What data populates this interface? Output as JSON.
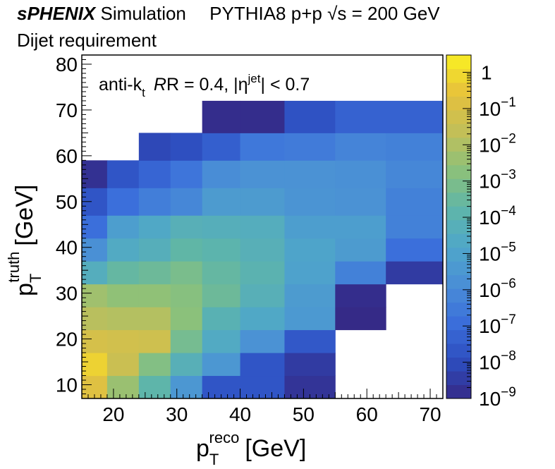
{
  "header": {
    "experiment": "sPHENIX",
    "simulation": "Simulation",
    "generator_text": "PYTHIA8 p+p",
    "energy_text": "s = 200 GeV",
    "requirement": "Dijet requirement"
  },
  "chart_data": {
    "type": "heatmap",
    "title": "",
    "annotation": {
      "algorithm": "anti-k",
      "algorithm_sub": "t",
      "radius_text": "R = 0.4, |η",
      "radius_sup": "jet",
      "cut_text": "| < 0.7"
    },
    "xlabel": {
      "base": "p",
      "sub": "T",
      "sup": "reco",
      "unit": "[GeV]"
    },
    "ylabel": {
      "base": "p",
      "sub": "T",
      "sup": "truth",
      "unit": "[GeV]"
    },
    "xlim": [
      15,
      72
    ],
    "ylim": [
      7,
      82
    ],
    "x_ticks": [
      "20",
      "30",
      "40",
      "50",
      "60",
      "70"
    ],
    "y_ticks": [
      "10",
      "20",
      "30",
      "40",
      "50",
      "60",
      "70",
      "80"
    ],
    "x_bin_edges": [
      15,
      19,
      24,
      29,
      34,
      40,
      47,
      55,
      63,
      72
    ],
    "y_bin_edges": [
      7,
      12,
      17,
      22,
      27,
      32,
      37,
      42,
      47,
      53,
      59,
      65,
      72
    ],
    "z_scale": "log",
    "zlim": [
      1e-09,
      3
    ],
    "z_ticks": [
      "1",
      "10^{-1}",
      "10^{-2}",
      "10^{-3}",
      "10^{-4}",
      "10^{-5}",
      "10^{-6}",
      "10^{-7}",
      "10^{-8}",
      "10^{-9}"
    ],
    "z_log10": [
      [
        -0.8,
        -2.4,
        -3.8,
        -5.5,
        -7.7,
        -7.7,
        -8.7,
        null,
        null
      ],
      [
        -0.2,
        -1.4,
        -2.9,
        -4.2,
        -5.5,
        -7.7,
        -8.5,
        null,
        null
      ],
      [
        -1.1,
        -1.2,
        -1.3,
        -3.2,
        -4.6,
        -5.7,
        -7.6,
        null,
        null
      ],
      [
        -1.8,
        -1.9,
        -1.9,
        -2.7,
        -4.1,
        -4.7,
        -5.4,
        -9.0,
        null
      ],
      [
        -2.3,
        -2.6,
        -2.6,
        -2.8,
        -3.4,
        -4.2,
        -5.3,
        -8.9,
        null
      ],
      [
        -4.4,
        -3.6,
        -3.4,
        -3.1,
        -3.6,
        -4.0,
        -5.0,
        -6.3,
        -8.5
      ],
      [
        -5.8,
        -4.6,
        -4.3,
        -3.7,
        -3.9,
        -4.2,
        -4.9,
        -5.3,
        -6.9
      ],
      [
        -6.9,
        -5.2,
        -4.7,
        -4.2,
        -4.3,
        -4.4,
        -5.2,
        -5.2,
        -6.3
      ],
      [
        -7.7,
        -6.9,
        -6.4,
        -6.1,
        -5.3,
        -5.3,
        -5.6,
        -5.7,
        -6.3
      ],
      [
        -8.8,
        -7.7,
        -7.2,
        -6.7,
        -5.9,
        -5.7,
        -5.7,
        -5.8,
        -6.1
      ],
      [
        null,
        null,
        -8.1,
        -7.9,
        -7.4,
        -6.6,
        -6.5,
        -6.2,
        -6.3
      ],
      [
        null,
        null,
        null,
        null,
        -8.9,
        -8.9,
        -7.8,
        -7.3,
        -7.3
      ]
    ],
    "colormap": [
      "#352a87",
      "#2d4dbf",
      "#3b6fdb",
      "#4a8fd6",
      "#4fa7c9",
      "#5fb6a8",
      "#8cc17a",
      "#c2bf58",
      "#e7c13c",
      "#f9f022"
    ],
    "grid": false,
    "legend": "none"
  }
}
